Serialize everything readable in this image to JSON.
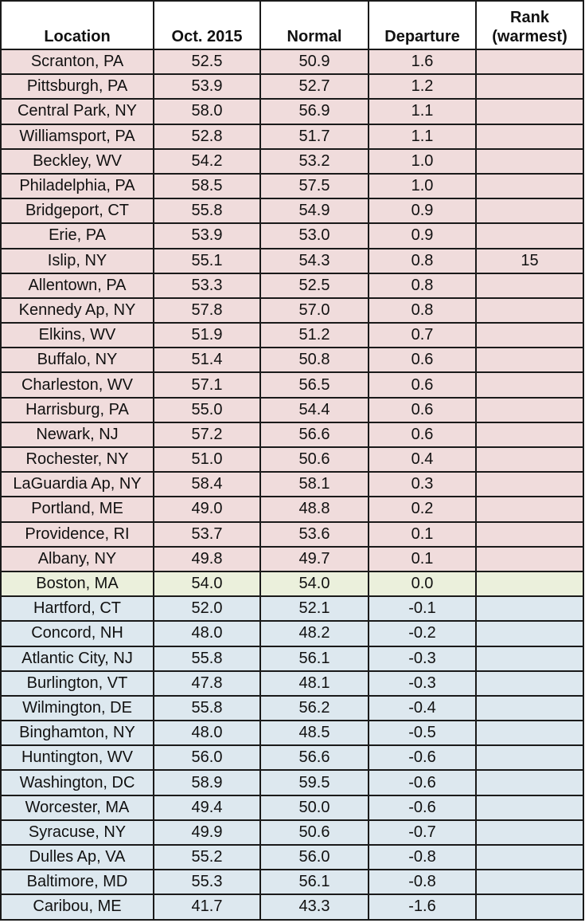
{
  "headers": {
    "location": "Location",
    "oct": "Oct. 2015",
    "normal": "Normal",
    "departure": "Departure",
    "rank_line1": "Rank",
    "rank_line2": "(warmest)"
  },
  "colors": {
    "above_normal": "#f0dcdc",
    "at_normal": "#ebf0dc",
    "below_normal": "#dde8ef"
  },
  "rows": [
    {
      "location": "Scranton, PA",
      "oct": "52.5",
      "normal": "50.9",
      "departure": "1.6",
      "rank": "",
      "category": "warm"
    },
    {
      "location": "Pittsburgh, PA",
      "oct": "53.9",
      "normal": "52.7",
      "departure": "1.2",
      "rank": "",
      "category": "warm"
    },
    {
      "location": "Central Park, NY",
      "oct": "58.0",
      "normal": "56.9",
      "departure": "1.1",
      "rank": "",
      "category": "warm"
    },
    {
      "location": "Williamsport, PA",
      "oct": "52.8",
      "normal": "51.7",
      "departure": "1.1",
      "rank": "",
      "category": "warm"
    },
    {
      "location": "Beckley, WV",
      "oct": "54.2",
      "normal": "53.2",
      "departure": "1.0",
      "rank": "",
      "category": "warm"
    },
    {
      "location": "Philadelphia, PA",
      "oct": "58.5",
      "normal": "57.5",
      "departure": "1.0",
      "rank": "",
      "category": "warm"
    },
    {
      "location": "Bridgeport, CT",
      "oct": "55.8",
      "normal": "54.9",
      "departure": "0.9",
      "rank": "",
      "category": "warm"
    },
    {
      "location": "Erie, PA",
      "oct": "53.9",
      "normal": "53.0",
      "departure": "0.9",
      "rank": "",
      "category": "warm"
    },
    {
      "location": "Islip, NY",
      "oct": "55.1",
      "normal": "54.3",
      "departure": "0.8",
      "rank": "15",
      "category": "warm"
    },
    {
      "location": "Allentown, PA",
      "oct": "53.3",
      "normal": "52.5",
      "departure": "0.8",
      "rank": "",
      "category": "warm"
    },
    {
      "location": "Kennedy Ap, NY",
      "oct": "57.8",
      "normal": "57.0",
      "departure": "0.8",
      "rank": "",
      "category": "warm"
    },
    {
      "location": "Elkins, WV",
      "oct": "51.9",
      "normal": "51.2",
      "departure": "0.7",
      "rank": "",
      "category": "warm"
    },
    {
      "location": "Buffalo, NY",
      "oct": "51.4",
      "normal": "50.8",
      "departure": "0.6",
      "rank": "",
      "category": "warm"
    },
    {
      "location": "Charleston, WV",
      "oct": "57.1",
      "normal": "56.5",
      "departure": "0.6",
      "rank": "",
      "category": "warm"
    },
    {
      "location": "Harrisburg, PA",
      "oct": "55.0",
      "normal": "54.4",
      "departure": "0.6",
      "rank": "",
      "category": "warm"
    },
    {
      "location": "Newark, NJ",
      "oct": "57.2",
      "normal": "56.6",
      "departure": "0.6",
      "rank": "",
      "category": "warm"
    },
    {
      "location": "Rochester, NY",
      "oct": "51.0",
      "normal": "50.6",
      "departure": "0.4",
      "rank": "",
      "category": "warm"
    },
    {
      "location": "LaGuardia Ap, NY",
      "oct": "58.4",
      "normal": "58.1",
      "departure": "0.3",
      "rank": "",
      "category": "warm"
    },
    {
      "location": "Portland, ME",
      "oct": "49.0",
      "normal": "48.8",
      "departure": "0.2",
      "rank": "",
      "category": "warm"
    },
    {
      "location": "Providence, RI",
      "oct": "53.7",
      "normal": "53.6",
      "departure": "0.1",
      "rank": "",
      "category": "warm"
    },
    {
      "location": "Albany, NY",
      "oct": "49.8",
      "normal": "49.7",
      "departure": "0.1",
      "rank": "",
      "category": "warm"
    },
    {
      "location": "Boston, MA",
      "oct": "54.0",
      "normal": "54.0",
      "departure": "0.0",
      "rank": "",
      "category": "neutral"
    },
    {
      "location": "Hartford, CT",
      "oct": "52.0",
      "normal": "52.1",
      "departure": "-0.1",
      "rank": "",
      "category": "cool"
    },
    {
      "location": "Concord, NH",
      "oct": "48.0",
      "normal": "48.2",
      "departure": "-0.2",
      "rank": "",
      "category": "cool"
    },
    {
      "location": "Atlantic City, NJ",
      "oct": "55.8",
      "normal": "56.1",
      "departure": "-0.3",
      "rank": "",
      "category": "cool"
    },
    {
      "location": "Burlington, VT",
      "oct": "47.8",
      "normal": "48.1",
      "departure": "-0.3",
      "rank": "",
      "category": "cool"
    },
    {
      "location": "Wilmington, DE",
      "oct": "55.8",
      "normal": "56.2",
      "departure": "-0.4",
      "rank": "",
      "category": "cool"
    },
    {
      "location": "Binghamton, NY",
      "oct": "48.0",
      "normal": "48.5",
      "departure": "-0.5",
      "rank": "",
      "category": "cool"
    },
    {
      "location": "Huntington, WV",
      "oct": "56.0",
      "normal": "56.6",
      "departure": "-0.6",
      "rank": "",
      "category": "cool"
    },
    {
      "location": "Washington, DC",
      "oct": "58.9",
      "normal": "59.5",
      "departure": "-0.6",
      "rank": "",
      "category": "cool"
    },
    {
      "location": "Worcester, MA",
      "oct": "49.4",
      "normal": "50.0",
      "departure": "-0.6",
      "rank": "",
      "category": "cool"
    },
    {
      "location": "Syracuse, NY",
      "oct": "49.9",
      "normal": "50.6",
      "departure": "-0.7",
      "rank": "",
      "category": "cool"
    },
    {
      "location": "Dulles Ap, VA",
      "oct": "55.2",
      "normal": "56.0",
      "departure": "-0.8",
      "rank": "",
      "category": "cool"
    },
    {
      "location": "Baltimore, MD",
      "oct": "55.3",
      "normal": "56.1",
      "departure": "-0.8",
      "rank": "",
      "category": "cool"
    },
    {
      "location": "Caribou, ME",
      "oct": "41.7",
      "normal": "43.3",
      "departure": "-1.6",
      "rank": "",
      "category": "cool"
    }
  ]
}
